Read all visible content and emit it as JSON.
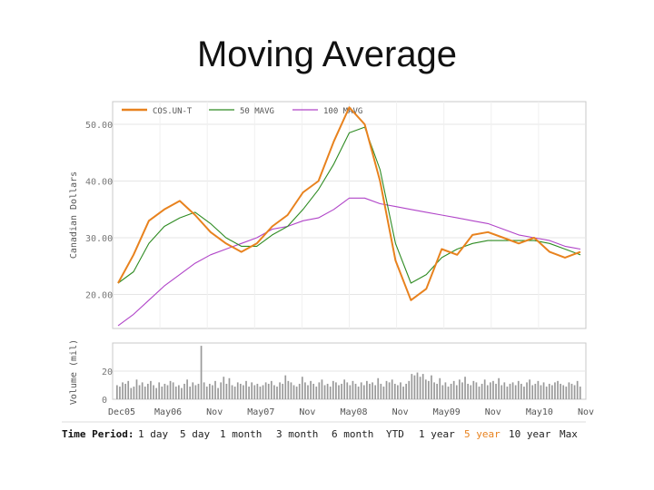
{
  "slide": {
    "title": "Moving Average"
  },
  "time_period": {
    "label": "Time Period:",
    "options": [
      "1 day",
      "5 day",
      "1 month",
      "3 month",
      "6 month",
      "YTD",
      "1 year",
      "5 year",
      "10 year",
      "Max"
    ],
    "active_index": 7
  },
  "colors": {
    "price": "#e8821e",
    "ma50": "#2e8b22",
    "ma100": "#b044c8",
    "grid": "#e6e6e6",
    "frame": "#c8c8c8",
    "volume": "#9a9a9a"
  },
  "chart_data": [
    {
      "type": "line",
      "title": "",
      "ylabel": "Canadian Dollars",
      "ylim": [
        14,
        54
      ],
      "yticks": [
        20,
        30,
        40,
        50
      ],
      "ytick_labels": [
        "20.00",
        "30.00",
        "40.00",
        "50.00"
      ],
      "legend": {
        "position": "top",
        "entries": [
          "COS.UN-T",
          "50 MAVG",
          "100 MAVG"
        ]
      },
      "grid": true,
      "x": [
        0,
        2,
        4,
        6,
        8,
        10,
        12,
        14,
        16,
        18,
        20,
        22,
        24,
        26,
        28,
        30,
        32,
        34,
        36,
        38,
        40,
        42,
        44,
        46,
        48,
        50,
        52,
        54,
        56,
        58,
        60
      ],
      "series": [
        {
          "name": "COS.UN-T",
          "values": [
            22,
            27,
            33,
            35,
            36.5,
            34,
            31,
            29,
            27.5,
            29,
            32,
            34,
            38,
            40,
            47,
            53,
            50,
            40,
            26,
            19,
            21,
            28,
            27,
            30.5,
            31,
            30,
            29,
            30,
            27.5,
            26.5,
            27.5
          ]
        },
        {
          "name": "50 MAVG",
          "values": [
            22,
            24,
            29,
            32,
            33.5,
            34.5,
            32.5,
            30,
            28.5,
            28.5,
            30.5,
            32,
            35,
            38.5,
            43,
            48.5,
            49.5,
            42,
            29,
            22,
            23.5,
            26.5,
            28,
            29,
            29.5,
            29.5,
            29.5,
            29.5,
            29,
            28,
            27
          ]
        },
        {
          "name": "100 MAVG",
          "values": [
            14.5,
            16.5,
            19,
            21.5,
            23.5,
            25.5,
            27,
            28,
            29,
            30,
            31.5,
            32,
            33,
            33.5,
            35,
            37,
            37,
            36,
            35.5,
            35,
            34.5,
            34,
            33.5,
            33,
            32.5,
            31.5,
            30.5,
            30,
            29.5,
            28.5,
            28
          ]
        }
      ]
    },
    {
      "type": "bar",
      "title": "",
      "ylabel": "Volume (mil)",
      "ylim": [
        0,
        40
      ],
      "yticks": [
        0,
        20
      ],
      "ytick_labels": [
        "0",
        "20"
      ],
      "x_tick_labels": [
        "Dec05",
        "May06",
        "Nov",
        "May07",
        "Nov",
        "May08",
        "Nov",
        "May09",
        "Nov",
        "May10",
        "Nov"
      ],
      "values": [
        10,
        9,
        12,
        11,
        13,
        8,
        9,
        14,
        10,
        12,
        9,
        11,
        13,
        10,
        8,
        12,
        9,
        11,
        10,
        13,
        12,
        9,
        10,
        8,
        11,
        14,
        9,
        12,
        10,
        11,
        38,
        12,
        9,
        11,
        10,
        13,
        8,
        12,
        16,
        11,
        15,
        10,
        9,
        12,
        11,
        10,
        13,
        9,
        12,
        10,
        11,
        9,
        10,
        12,
        11,
        13,
        10,
        9,
        12,
        11,
        17,
        13,
        12,
        10,
        9,
        11,
        16,
        12,
        10,
        13,
        11,
        9,
        12,
        14,
        10,
        11,
        9,
        13,
        12,
        10,
        11,
        14,
        12,
        10,
        13,
        11,
        9,
        12,
        10,
        13,
        11,
        12,
        10,
        15,
        11,
        9,
        13,
        12,
        14,
        11,
        10,
        12,
        9,
        11,
        13,
        18,
        17,
        19,
        16,
        18,
        14,
        13,
        17,
        12,
        11,
        15,
        10,
        12,
        9,
        11,
        13,
        10,
        14,
        12,
        16,
        11,
        10,
        13,
        12,
        9,
        11,
        14,
        10,
        12,
        13,
        11,
        15,
        10,
        12,
        9,
        11,
        12,
        10,
        13,
        11,
        9,
        12,
        14,
        10,
        11,
        13,
        10,
        12,
        9,
        11,
        10,
        12,
        13,
        11,
        10,
        9,
        12,
        11,
        10,
        13,
        9
      ]
    }
  ]
}
